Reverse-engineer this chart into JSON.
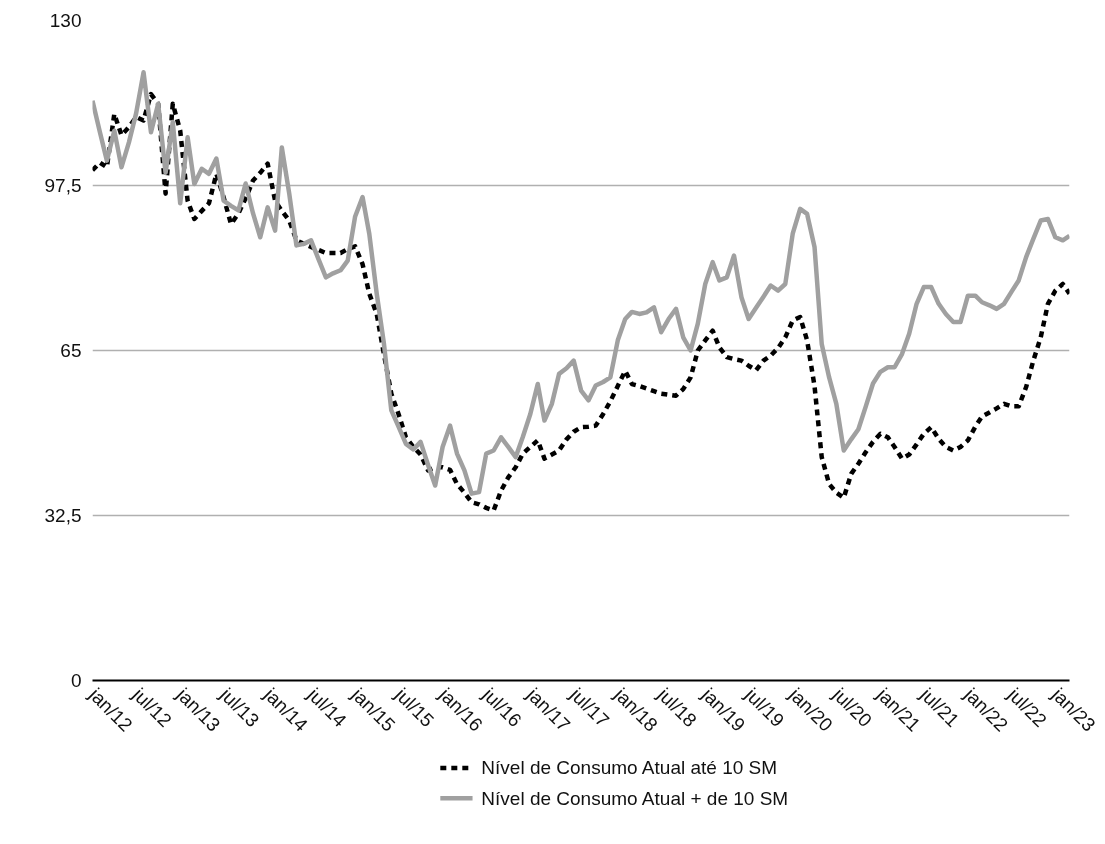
{
  "chart_data": {
    "type": "line",
    "x": [
      "2012-01",
      "2012-02",
      "2012-03",
      "2012-04",
      "2012-05",
      "2012-06",
      "2012-07",
      "2012-08",
      "2012-09",
      "2012-10",
      "2012-11",
      "2012-12",
      "2013-01",
      "2013-02",
      "2013-03",
      "2013-04",
      "2013-05",
      "2013-06",
      "2013-07",
      "2013-08",
      "2013-09",
      "2013-10",
      "2013-11",
      "2013-12",
      "2014-01",
      "2014-02",
      "2014-03",
      "2014-04",
      "2014-05",
      "2014-06",
      "2014-07",
      "2014-08",
      "2014-09",
      "2014-10",
      "2014-11",
      "2014-12",
      "2015-01",
      "2015-02",
      "2015-03",
      "2015-04",
      "2015-05",
      "2015-06",
      "2015-07",
      "2015-08",
      "2015-09",
      "2015-10",
      "2015-11",
      "2015-12",
      "2016-01",
      "2016-02",
      "2016-03",
      "2016-04",
      "2016-05",
      "2016-06",
      "2016-07",
      "2016-08",
      "2016-09",
      "2016-10",
      "2016-11",
      "2016-12",
      "2017-01",
      "2017-02",
      "2017-03",
      "2017-04",
      "2017-05",
      "2017-06",
      "2017-07",
      "2017-08",
      "2017-09",
      "2017-10",
      "2017-11",
      "2017-12",
      "2018-01",
      "2018-02",
      "2018-03",
      "2018-04",
      "2018-05",
      "2018-06",
      "2018-07",
      "2018-08",
      "2018-09",
      "2018-10",
      "2018-11",
      "2018-12",
      "2019-01",
      "2019-02",
      "2019-03",
      "2019-04",
      "2019-05",
      "2019-06",
      "2019-07",
      "2019-08",
      "2019-09",
      "2019-10",
      "2019-11",
      "2019-12",
      "2020-01",
      "2020-02",
      "2020-03",
      "2020-04",
      "2020-05",
      "2020-06",
      "2020-07",
      "2020-08",
      "2020-09",
      "2020-10",
      "2020-11",
      "2020-12",
      "2021-01",
      "2021-02",
      "2021-03",
      "2021-04",
      "2021-05",
      "2021-06",
      "2021-07",
      "2021-08",
      "2021-09",
      "2021-10",
      "2021-11",
      "2021-12",
      "2022-01",
      "2022-02",
      "2022-03",
      "2022-04",
      "2022-05",
      "2022-06",
      "2022-07",
      "2022-08",
      "2022-09",
      "2022-10",
      "2022-11",
      "2022-12",
      "2023-01",
      "2023-02",
      "2023-03"
    ],
    "series": [
      {
        "name": "Nível de Consumo Atual até 10 SM",
        "color": "#000000",
        "line_style": "dashed",
        "values": [
          100.5,
          102,
          101.1,
          111.6,
          107.4,
          109,
          111,
          110.3,
          115.5,
          113.6,
          95.9,
          113.6,
          108.3,
          94.5,
          90.9,
          92.5,
          94,
          99.8,
          95.2,
          89.9,
          92,
          95,
          98.5,
          100,
          101.8,
          94.5,
          92.5,
          90.6,
          86.7,
          86,
          85.4,
          84.8,
          84.2,
          84.2,
          84.2,
          85,
          85.5,
          82,
          76.2,
          72.2,
          64.3,
          56.5,
          52.5,
          47.9,
          46,
          44.5,
          41.4,
          42,
          42,
          41.5,
          38.7,
          37,
          35.1,
          34.7,
          34,
          33.5,
          37.4,
          40,
          42,
          44.7,
          46,
          47.3,
          43.7,
          44.5,
          45.3,
          47.5,
          49,
          49.9,
          50,
          50.2,
          52.5,
          55,
          58,
          61,
          58.4,
          58,
          57.5,
          57,
          56.5,
          56.3,
          56.1,
          57.4,
          59.7,
          65,
          67,
          68.9,
          65.6,
          63.7,
          63.3,
          63,
          62,
          61.1,
          63,
          64,
          65.5,
          67.6,
          70.9,
          71.6,
          67,
          58,
          44,
          38.7,
          37,
          36,
          40.7,
          42.7,
          45,
          47,
          48.6,
          47.9,
          46,
          43.7,
          44.5,
          46.5,
          48.6,
          49.9,
          47.6,
          46,
          45.3,
          46,
          47.3,
          50,
          52,
          52.8,
          53.6,
          54.5,
          54,
          54,
          57.8,
          63,
          67.6,
          74.2,
          76.8,
          78.1,
          76.2
        ]
      },
      {
        "name": "Nível de Consumo Atual + de 10 SM",
        "color": "#a0a0a0",
        "line_style": "solid",
        "values": [
          114.2,
          108,
          102.4,
          108.3,
          101.1,
          106,
          111.7,
          119.8,
          108,
          113.6,
          100,
          110,
          94,
          107,
          97.8,
          100.8,
          99.8,
          102.8,
          94.5,
          93.5,
          92.6,
          97.9,
          92,
          87.3,
          93.2,
          88.6,
          105,
          95.9,
          85.7,
          86,
          86.7,
          83,
          79.4,
          80.2,
          80.8,
          82.7,
          91.4,
          95.2,
          88,
          76.2,
          66.4,
          53.2,
          50,
          46.6,
          45.5,
          47,
          42.5,
          38.4,
          46,
          50.2,
          44.7,
          41.4,
          36.8,
          37.1,
          44.7,
          45.3,
          47.9,
          46,
          44,
          48,
          52.5,
          58.4,
          51.2,
          54.5,
          60.4,
          61.5,
          63,
          57.1,
          55.2,
          58.1,
          58.8,
          59.7,
          67,
          71.2,
          72.6,
          72.2,
          72.5,
          73.5,
          68.6,
          71.2,
          73.2,
          67.6,
          65,
          70.3,
          78.1,
          82.4,
          78.8,
          79.4,
          83.7,
          75.5,
          71.2,
          73.4,
          75.6,
          77.8,
          76.8,
          78.1,
          88,
          92.9,
          91.9,
          85.4,
          66.3,
          59.7,
          54.5,
          45.3,
          47.5,
          49.5,
          54,
          58.5,
          60.8,
          61.7,
          61.7,
          64.3,
          68.3,
          74.2,
          77.5,
          77.5,
          74.2,
          72.2,
          70.6,
          70.6,
          75.8,
          75.8,
          74.5,
          73.9,
          73.2,
          74.2,
          76.5,
          78.8,
          83.4,
          87,
          90.6,
          90.9,
          87.3,
          86.7,
          87.6
        ]
      }
    ],
    "xlim": [
      "2012-01",
      "2023-03"
    ],
    "xticks": [
      {
        "value": "2012-01",
        "label": "jan/12"
      },
      {
        "value": "2012-07",
        "label": "jul/12"
      },
      {
        "value": "2013-01",
        "label": "jan/13"
      },
      {
        "value": "2013-07",
        "label": "jul/13"
      },
      {
        "value": "2014-01",
        "label": "jan/14"
      },
      {
        "value": "2014-07",
        "label": "jul/14"
      },
      {
        "value": "2015-01",
        "label": "jan/15"
      },
      {
        "value": "2015-07",
        "label": "jul/15"
      },
      {
        "value": "2016-01",
        "label": "jan/16"
      },
      {
        "value": "2016-07",
        "label": "jul/16"
      },
      {
        "value": "2017-01",
        "label": "jan/17"
      },
      {
        "value": "2017-07",
        "label": "jul/17"
      },
      {
        "value": "2018-01",
        "label": "jan/18"
      },
      {
        "value": "2018-07",
        "label": "jul/18"
      },
      {
        "value": "2019-01",
        "label": "jan/19"
      },
      {
        "value": "2019-07",
        "label": "jul/19"
      },
      {
        "value": "2020-01",
        "label": "jan/20"
      },
      {
        "value": "2020-07",
        "label": "jul/20"
      },
      {
        "value": "2021-01",
        "label": "jan/21"
      },
      {
        "value": "2021-07",
        "label": "jul/21"
      },
      {
        "value": "2022-01",
        "label": "jan/22"
      },
      {
        "value": "2022-07",
        "label": "jul/22"
      },
      {
        "value": "2023-01",
        "label": "jan/23"
      }
    ],
    "ylim": [
      0,
      130
    ],
    "yticks": [
      0,
      {
        "value": 32.5,
        "label": "32,5"
      },
      65,
      {
        "value": 97.5,
        "label": "97,5"
      },
      130
    ],
    "grid": "y",
    "legend": "bottom",
    "marker": "none"
  }
}
